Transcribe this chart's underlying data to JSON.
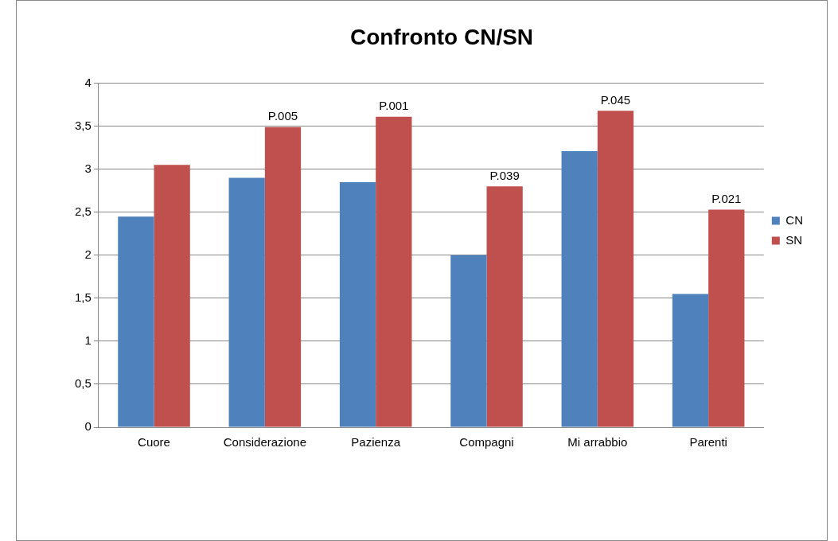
{
  "chart_data": {
    "type": "bar",
    "title": "Confronto CN/SN",
    "categories": [
      "Cuore",
      "Considerazione",
      "Pazienza",
      "Compagni",
      "Mi arrabbio",
      "Parenti"
    ],
    "series": [
      {
        "name": "CN",
        "color": "#4f81bd",
        "values": [
          2.45,
          2.9,
          2.85,
          2.0,
          3.21,
          1.55
        ]
      },
      {
        "name": "SN",
        "color": "#c0504d",
        "values": [
          3.05,
          3.49,
          3.61,
          2.8,
          3.68,
          2.53
        ]
      }
    ],
    "ylim": [
      0,
      4
    ],
    "yticks": [
      0,
      {
        "value": 0.5,
        "label": "0,5"
      },
      1,
      {
        "value": 1.5,
        "label": "1,5"
      },
      2,
      {
        "value": 2.5,
        "label": "2,5"
      },
      3,
      {
        "value": 3.5,
        "label": "3,5"
      },
      4
    ],
    "grid": "y",
    "legend": "right",
    "annotations": [
      {
        "text": "P.005",
        "x": "Considerazione",
        "y": 3.49
      },
      {
        "text": "P.001",
        "x": "Pazienza",
        "y": 3.61
      },
      {
        "text": "P.039",
        "x": "Compagni",
        "y": 2.8
      },
      {
        "text": "P.045",
        "x": "Mi arrabbio",
        "y": 3.68
      },
      {
        "text": "P.021",
        "x": "Parenti",
        "y": 2.53
      }
    ]
  }
}
